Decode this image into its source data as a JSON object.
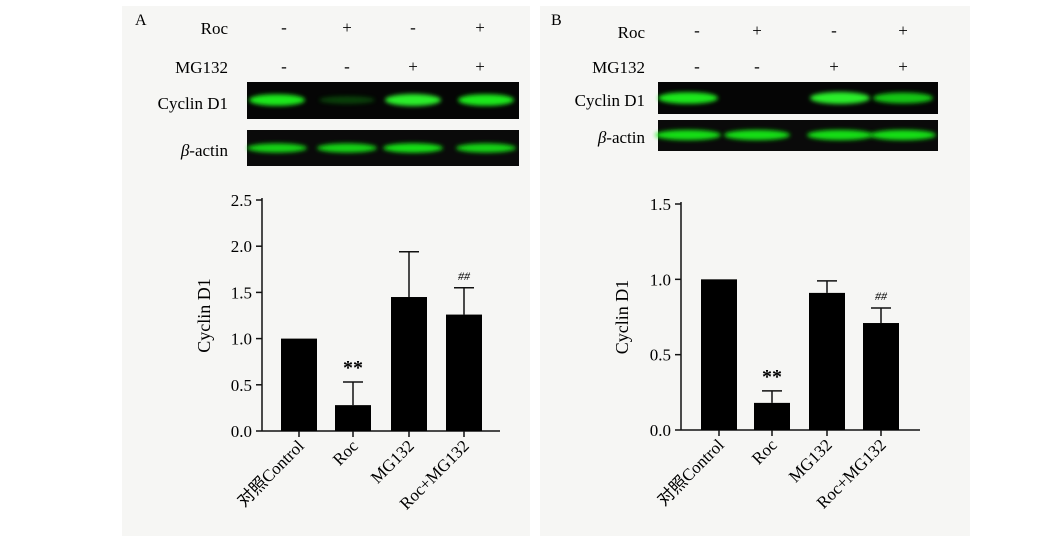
{
  "panels": [
    {
      "letter": "A",
      "treatment_rows": [
        {
          "label": "Roc",
          "signs": [
            "-",
            "+",
            "-",
            "+"
          ]
        },
        {
          "label": "MG132",
          "signs": [
            "-",
            "-",
            "+",
            "+"
          ]
        }
      ],
      "blots": [
        {
          "label_prefix": "",
          "label_main": "Cyclin D1",
          "intensity": [
            0.9,
            0.12,
            1.0,
            0.9
          ]
        },
        {
          "label_prefix": "β",
          "label_main": "-actin",
          "intensity": [
            0.8,
            0.8,
            0.85,
            0.8
          ]
        }
      ]
    },
    {
      "letter": "B",
      "treatment_rows": [
        {
          "label": "Roc",
          "signs": [
            "-",
            "+",
            "-",
            "+"
          ]
        },
        {
          "label": "MG132",
          "signs": [
            "-",
            "-",
            "+",
            "+"
          ]
        }
      ],
      "blots": [
        {
          "label_prefix": "",
          "label_main": "Cyclin D1",
          "intensity": [
            0.9,
            0.0,
            1.0,
            0.75
          ]
        },
        {
          "label_prefix": "β",
          "label_main": "-actin",
          "intensity": [
            0.85,
            0.85,
            0.85,
            0.85
          ]
        }
      ]
    }
  ],
  "chart_data": [
    {
      "type": "bar",
      "panel": "A",
      "categories": [
        "对照Control",
        "Roc",
        "MG132",
        "Roc+MG132"
      ],
      "values": [
        1.0,
        0.28,
        1.45,
        1.26
      ],
      "errors": [
        0,
        0.25,
        0.49,
        0.29
      ],
      "annotations": [
        "",
        "**",
        "",
        "##"
      ],
      "ylabel": "Cyclin D1",
      "ylim": [
        0,
        2.5
      ],
      "yticks": [
        "0.0",
        "0.5",
        "1.0",
        "1.5",
        "2.0",
        "2.5"
      ],
      "ytick_values": [
        0,
        0.5,
        1.0,
        1.5,
        2.0,
        2.5
      ],
      "grid": false
    },
    {
      "type": "bar",
      "panel": "B",
      "categories": [
        "对照Control",
        "Roc",
        "MG132",
        "Roc+MG132"
      ],
      "values": [
        1.0,
        0.18,
        0.91,
        0.71
      ],
      "errors": [
        0,
        0.08,
        0.08,
        0.1
      ],
      "annotations": [
        "",
        "**",
        "",
        "##"
      ],
      "ylabel": "Cyclin D1",
      "ylim": [
        0,
        1.5
      ],
      "yticks": [
        "0.0",
        "0.5",
        "1.0",
        "1.5"
      ],
      "ytick_values": [
        0,
        0.5,
        1.0,
        1.5
      ],
      "grid": false
    }
  ]
}
